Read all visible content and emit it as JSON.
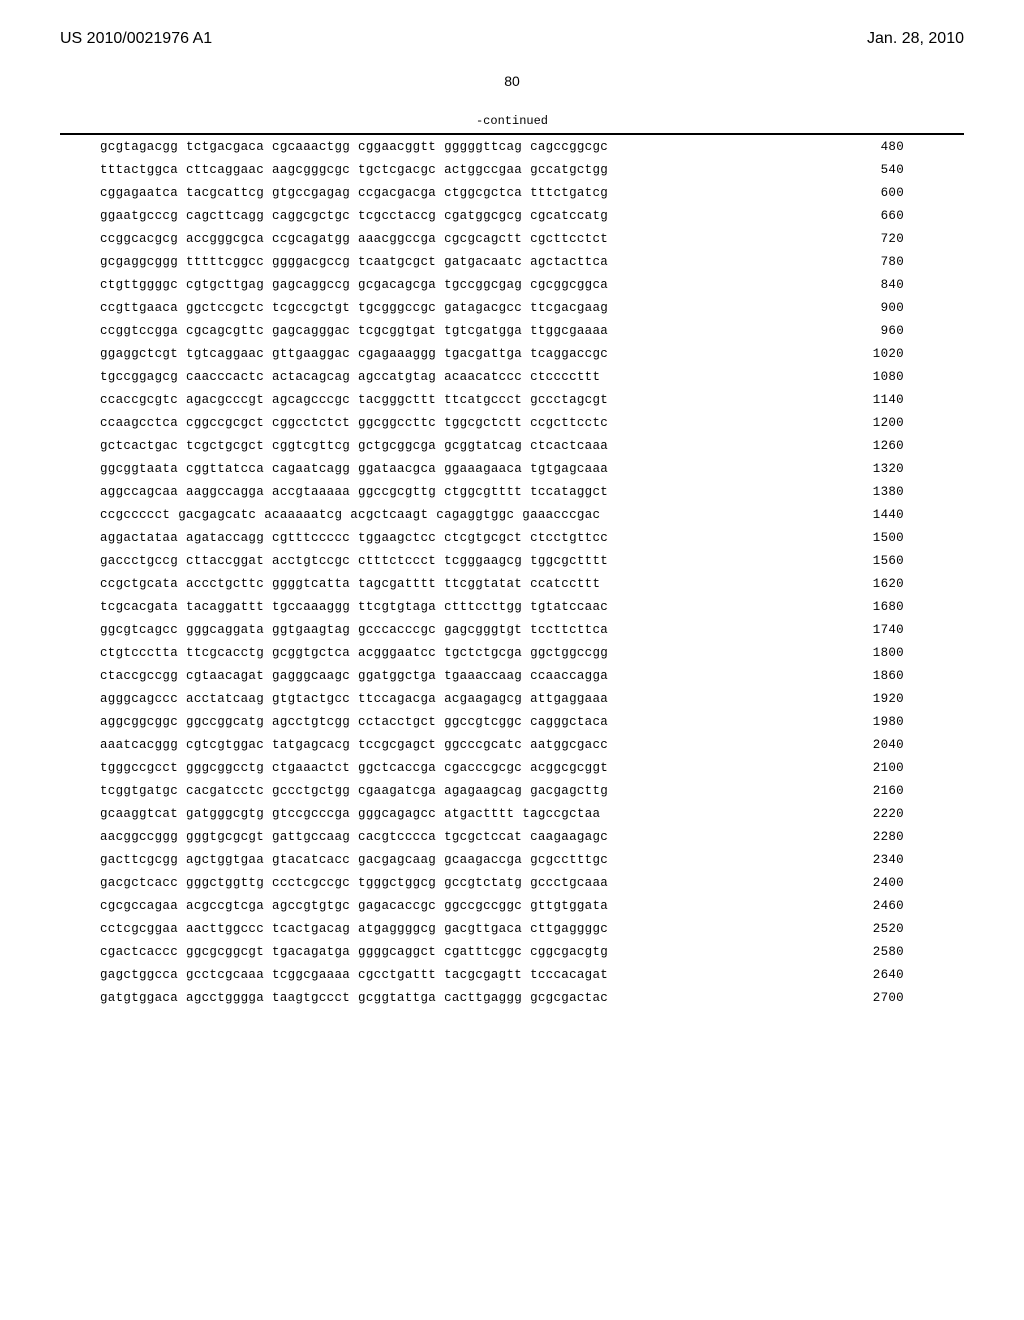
{
  "header": {
    "publication_number": "US 2010/0021976 A1",
    "publication_date": "Jan. 28, 2010"
  },
  "page_number": "80",
  "continued_label": "-continued",
  "sequence_rows": [
    {
      "blocks": [
        "gcgtagacgg",
        "tctgacgaca",
        "cgcaaactgg",
        "cggaacggtt",
        "gggggttcag",
        "cagccggcgc"
      ],
      "number": "480"
    },
    {
      "blocks": [
        "tttactggca",
        "cttcaggaac",
        "aagcgggcgc",
        "tgctcgacgc",
        "actggccgaa",
        "gccatgctgg"
      ],
      "number": "540"
    },
    {
      "blocks": [
        "cggagaatca",
        "tacgcattcg",
        "gtgccgagag",
        "ccgacgacga",
        "ctggcgctca",
        "tttctgatcg"
      ],
      "number": "600"
    },
    {
      "blocks": [
        "ggaatgcccg",
        "cagcttcagg",
        "caggcgctgc",
        "tcgcctaccg",
        "cgatggcgcg",
        "cgcatccatg"
      ],
      "number": "660"
    },
    {
      "blocks": [
        "ccggcacgcg",
        "accgggcgca",
        "ccgcagatgg",
        "aaacggccga",
        "cgcgcagctt",
        "cgcttcctct"
      ],
      "number": "720"
    },
    {
      "blocks": [
        "gcgaggcggg",
        "tttttcggcc",
        "ggggacgccg",
        "tcaatgcgct",
        "gatgacaatc",
        "agctacttca"
      ],
      "number": "780"
    },
    {
      "blocks": [
        "ctgttggggc",
        "cgtgcttgag",
        "gagcaggccg",
        "gcgacagcga",
        "tgccggcgag",
        "cgcggcggca"
      ],
      "number": "840"
    },
    {
      "blocks": [
        "ccgttgaaca",
        "ggctccgctc",
        "tcgccgctgt",
        "tgcgggccgc",
        "gatagacgcc",
        "ttcgacgaag"
      ],
      "number": "900"
    },
    {
      "blocks": [
        "ccggtccgga",
        "cgcagcgttc",
        "gagcagggac",
        "tcgcggtgat",
        "tgtcgatgga",
        "ttggcgaaaa"
      ],
      "number": "960"
    },
    {
      "blocks": [
        "ggaggctcgt",
        "tgtcaggaac",
        "gttgaaggac",
        "cgagaaaggg",
        "tgacgattga",
        "tcaggaccgc"
      ],
      "number": "1020"
    },
    {
      "blocks": [
        "tgccggagcg",
        "caacccactc",
        "actacagcag",
        "agccatgtag",
        "acaacatccc",
        "ctccccttt"
      ],
      "number": "1080"
    },
    {
      "blocks": [
        "ccaccgcgtc",
        "agacgcccgt",
        "agcagcccgc",
        "tacgggcttt",
        "ttcatgccct",
        "gccctagcgt"
      ],
      "number": "1140"
    },
    {
      "blocks": [
        "ccaagcctca",
        "cggccgcgct",
        "cggcctctct",
        "ggcggccttc",
        "tggcgctctt",
        "ccgcttcctc"
      ],
      "number": "1200"
    },
    {
      "blocks": [
        "gctcactgac",
        "tcgctgcgct",
        "cggtcgttcg",
        "gctgcggcga",
        "gcggtatcag",
        "ctcactcaaa"
      ],
      "number": "1260"
    },
    {
      "blocks": [
        "ggcggtaata",
        "cggttatcca",
        "cagaatcagg",
        "ggataacgca",
        "ggaaagaaca",
        "tgtgagcaaa"
      ],
      "number": "1320"
    },
    {
      "blocks": [
        "aggccagcaa",
        "aaggccagga",
        "accgtaaaaa",
        "ggccgcgttg",
        "ctggcgtttt",
        "tccataggct"
      ],
      "number": "1380"
    },
    {
      "blocks": [
        "ccgccccct",
        "gacgagcatc",
        "acaaaaatcg",
        "acgctcaagt",
        "cagaggtggc",
        "gaaacccgac"
      ],
      "number": "1440"
    },
    {
      "blocks": [
        "aggactataa",
        "agataccagg",
        "cgtttccccc",
        "tggaagctcc",
        "ctcgtgcgct",
        "ctcctgttcc"
      ],
      "number": "1500"
    },
    {
      "blocks": [
        "gaccctgccg",
        "cttaccggat",
        "acctgtccgc",
        "ctttctccct",
        "tcgggaagcg",
        "tggcgctttt"
      ],
      "number": "1560"
    },
    {
      "blocks": [
        "ccgctgcata",
        "accctgcttc",
        "ggggtcatta",
        "tagcgatttt",
        "ttcggtatat",
        "ccatccttt"
      ],
      "number": "1620"
    },
    {
      "blocks": [
        "tcgcacgata",
        "tacaggattt",
        "tgccaaaggg",
        "ttcgtgtaga",
        "ctttccttgg",
        "tgtatccaac"
      ],
      "number": "1680"
    },
    {
      "blocks": [
        "ggcgtcagcc",
        "gggcaggata",
        "ggtgaagtag",
        "gcccacccgc",
        "gagcgggtgt",
        "tccttcttca"
      ],
      "number": "1740"
    },
    {
      "blocks": [
        "ctgtccctta",
        "ttcgcacctg",
        "gcggtgctca",
        "acgggaatcc",
        "tgctctgcga",
        "ggctggccgg"
      ],
      "number": "1800"
    },
    {
      "blocks": [
        "ctaccgccgg",
        "cgtaacagat",
        "gagggcaagc",
        "ggatggctga",
        "tgaaaccaag",
        "ccaaccagga"
      ],
      "number": "1860"
    },
    {
      "blocks": [
        "agggcagccc",
        "acctatcaag",
        "gtgtactgcc",
        "ttccagacga",
        "acgaagagcg",
        "attgaggaaa"
      ],
      "number": "1920"
    },
    {
      "blocks": [
        "aggcggcggc",
        "ggccggcatg",
        "agcctgtcgg",
        "cctacctgct",
        "ggccgtcggc",
        "cagggctaca"
      ],
      "number": "1980"
    },
    {
      "blocks": [
        "aaatcacggg",
        "cgtcgtggac",
        "tatgagcacg",
        "tccgcgagct",
        "ggcccgcatc",
        "aatggcgacc"
      ],
      "number": "2040"
    },
    {
      "blocks": [
        "tgggccgcct",
        "gggcggcctg",
        "ctgaaactct",
        "ggctcaccga",
        "cgacccgcgc",
        "acggcgcggt"
      ],
      "number": "2100"
    },
    {
      "blocks": [
        "tcggtgatgc",
        "cacgatcctc",
        "gccctgctgg",
        "cgaagatcga",
        "agagaagcag",
        "gacgagcttg"
      ],
      "number": "2160"
    },
    {
      "blocks": [
        "gcaaggtcat",
        "gatgggcgtg",
        "gtccgcccga",
        "gggcagagcc",
        "atgactttt",
        "tagccgctaa"
      ],
      "number": "2220"
    },
    {
      "blocks": [
        "aacggccggg",
        "gggtgcgcgt",
        "gattgccaag",
        "cacgtcccca",
        "tgcgctccat",
        "caagaagagc"
      ],
      "number": "2280"
    },
    {
      "blocks": [
        "gacttcgcgg",
        "agctggtgaa",
        "gtacatcacc",
        "gacgagcaag",
        "gcaagaccga",
        "gcgcctttgc"
      ],
      "number": "2340"
    },
    {
      "blocks": [
        "gacgctcacc",
        "gggctggttg",
        "ccctcgccgc",
        "tgggctggcg",
        "gccgtctatg",
        "gccctgcaaa"
      ],
      "number": "2400"
    },
    {
      "blocks": [
        "cgcgccagaa",
        "acgccgtcga",
        "agccgtgtgc",
        "gagacaccgc",
        "ggccgccggc",
        "gttgtggata"
      ],
      "number": "2460"
    },
    {
      "blocks": [
        "cctcgcggaa",
        "aacttggccc",
        "tcactgacag",
        "atgaggggcg",
        "gacgttgaca",
        "cttgaggggc"
      ],
      "number": "2520"
    },
    {
      "blocks": [
        "cgactcaccc",
        "ggcgcggcgt",
        "tgacagatga",
        "ggggcaggct",
        "cgatttcggc",
        "cggcgacgtg"
      ],
      "number": "2580"
    },
    {
      "blocks": [
        "gagctggcca",
        "gcctcgcaaa",
        "tcggcgaaaa",
        "cgcctgattt",
        "tacgcgagtt",
        "tcccacagat"
      ],
      "number": "2640"
    },
    {
      "blocks": [
        "gatgtggaca",
        "agcctgggga",
        "taagtgccct",
        "gcggtattga",
        "cacttgaggg",
        "gcgcgactac"
      ],
      "number": "2700"
    }
  ]
}
